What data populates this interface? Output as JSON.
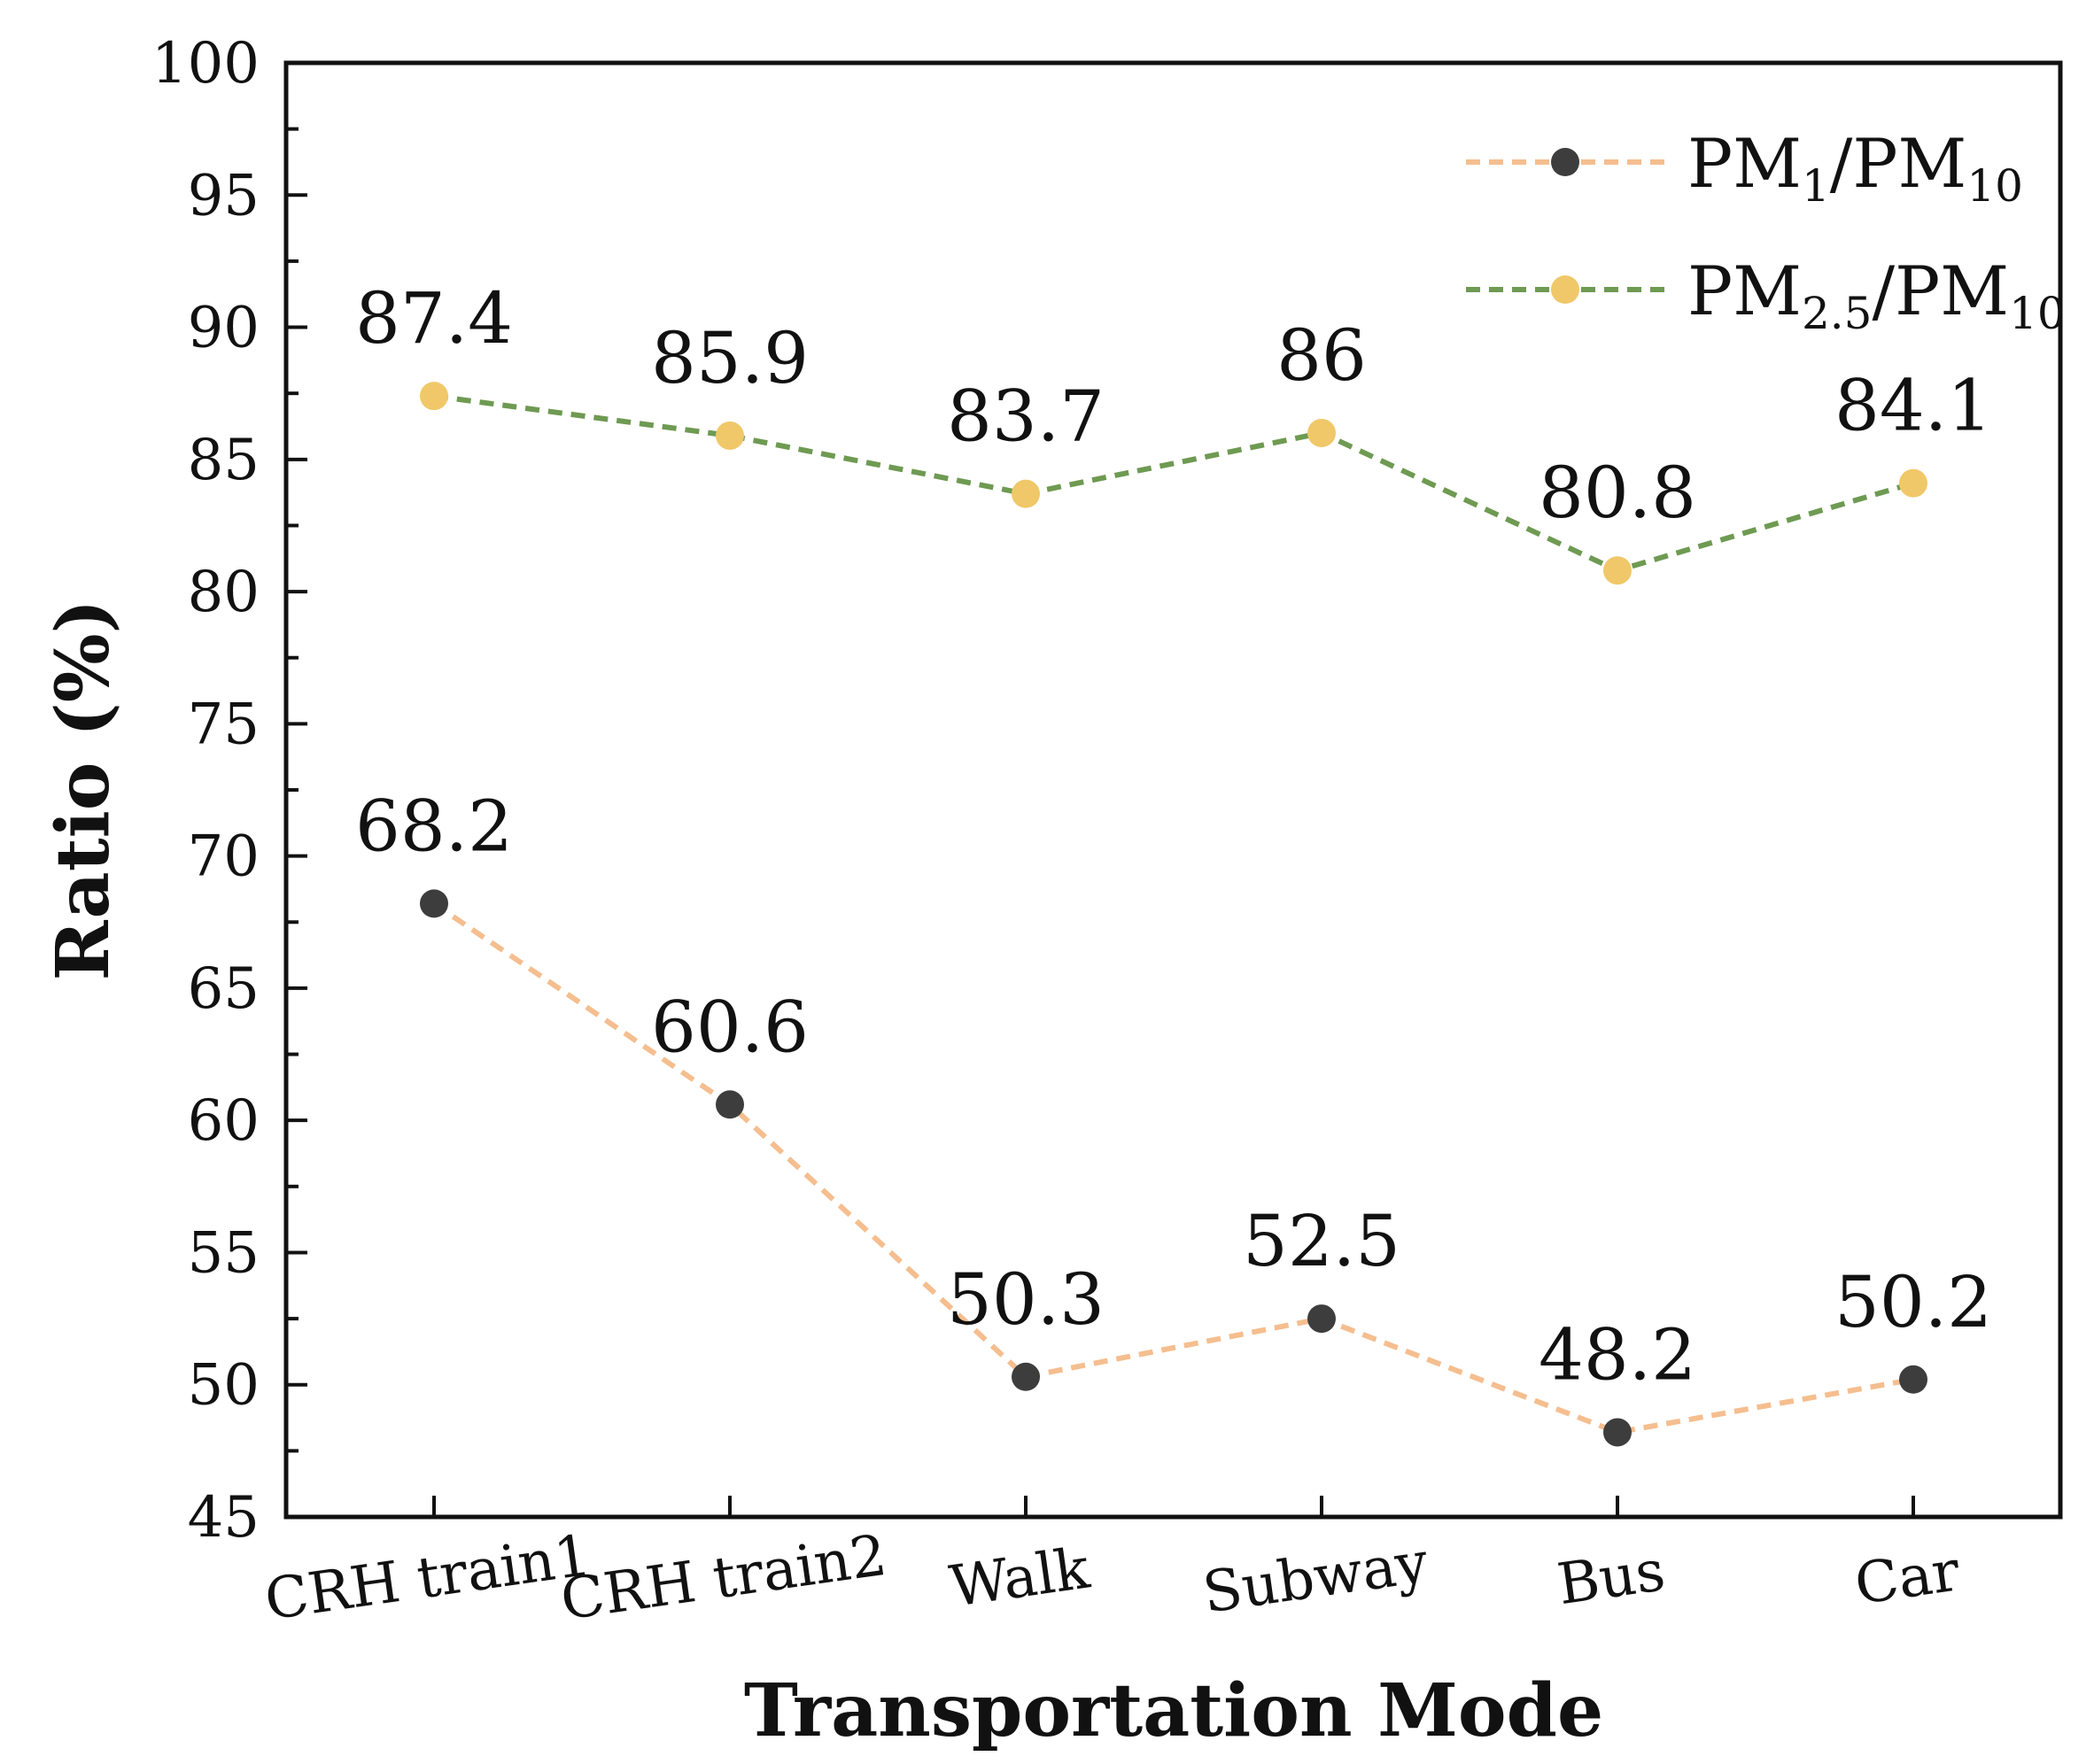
{
  "chart_data": {
    "type": "line",
    "title": "",
    "xlabel": "Transportation Mode",
    "ylabel": "Ratio (%)",
    "ylim": [
      45,
      100
    ],
    "y_major_ticks": [
      45,
      50,
      55,
      60,
      65,
      70,
      75,
      80,
      85,
      90,
      95,
      100
    ],
    "y_tick_labels": [
      "45",
      "50",
      "55",
      "60",
      "65",
      "70",
      "75",
      "80",
      "85",
      "90",
      "95",
      "100"
    ],
    "categories": [
      "CRH train1",
      "CRH train2",
      "Walk",
      "Subway",
      "Bus",
      "Car"
    ],
    "legend_position": "top-right",
    "grid": false,
    "series": [
      {
        "name": "PM1/PM10",
        "legend": {
          "a": "PM",
          "a_sub": "1",
          "sep": "/PM",
          "b_sub": "10"
        },
        "values": [
          68.2,
          60.6,
          50.3,
          52.5,
          48.2,
          50.2
        ],
        "labels": [
          "68.2",
          "60.6",
          "50.3",
          "52.5",
          "48.2",
          "50.2"
        ],
        "line_color": "#F5BE8F",
        "marker_color": "#3D3D3D",
        "line_style": "dashed"
      },
      {
        "name": "PM2.5/PM10",
        "legend": {
          "a": "PM",
          "a_sub": "2.5",
          "sep": "/PM",
          "b_sub": "10"
        },
        "values": [
          87.4,
          85.9,
          83.7,
          86,
          80.8,
          84.1
        ],
        "labels": [
          "87.4",
          "85.9",
          "83.7",
          "86",
          "80.8",
          "84.1"
        ],
        "line_color": "#6E9A52",
        "marker_color": "#F0C869",
        "line_style": "dashed"
      }
    ]
  }
}
